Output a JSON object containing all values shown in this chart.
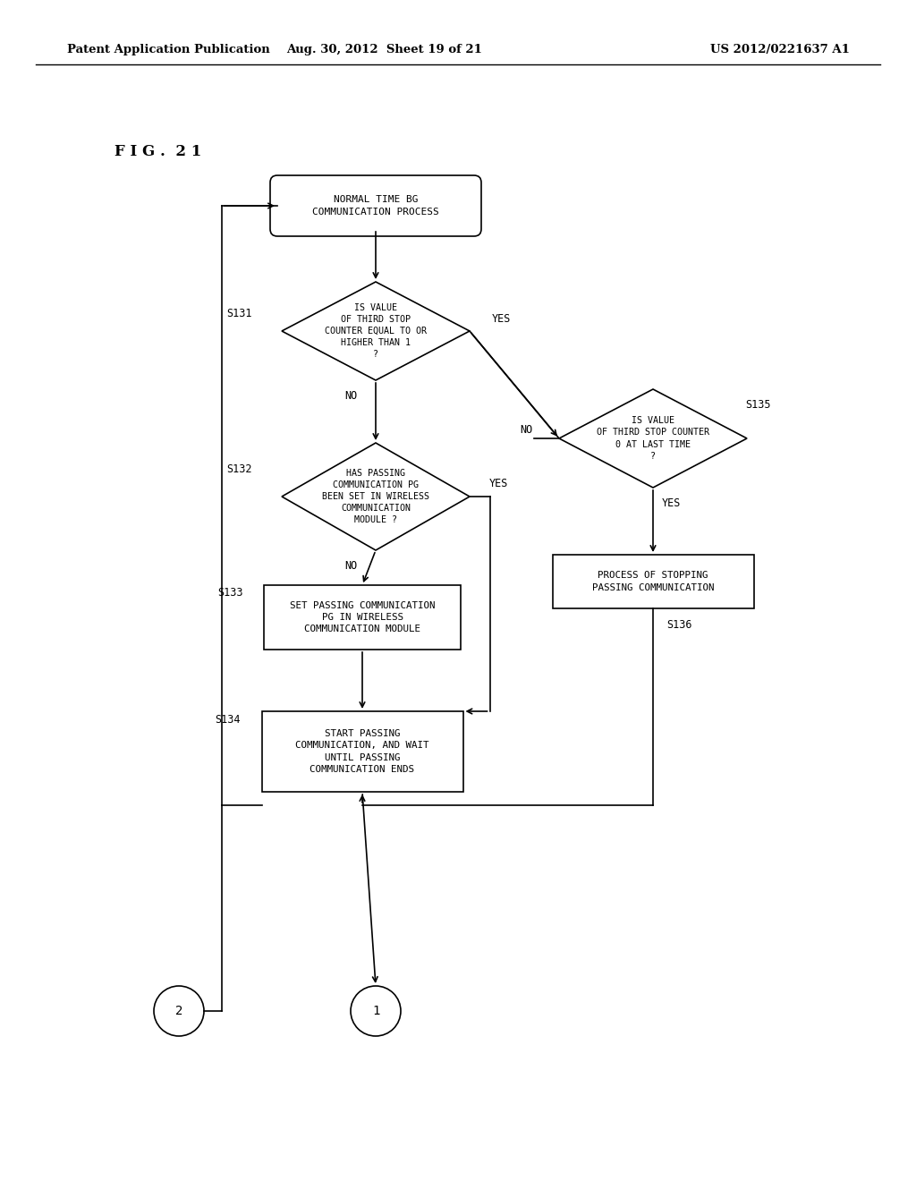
{
  "bg_color": "#ffffff",
  "header_left": "Patent Application Publication",
  "header_mid": "Aug. 30, 2012  Sheet 19 of 21",
  "header_right": "US 2012/0221637 A1",
  "fig_label": "F I G .  2 1"
}
